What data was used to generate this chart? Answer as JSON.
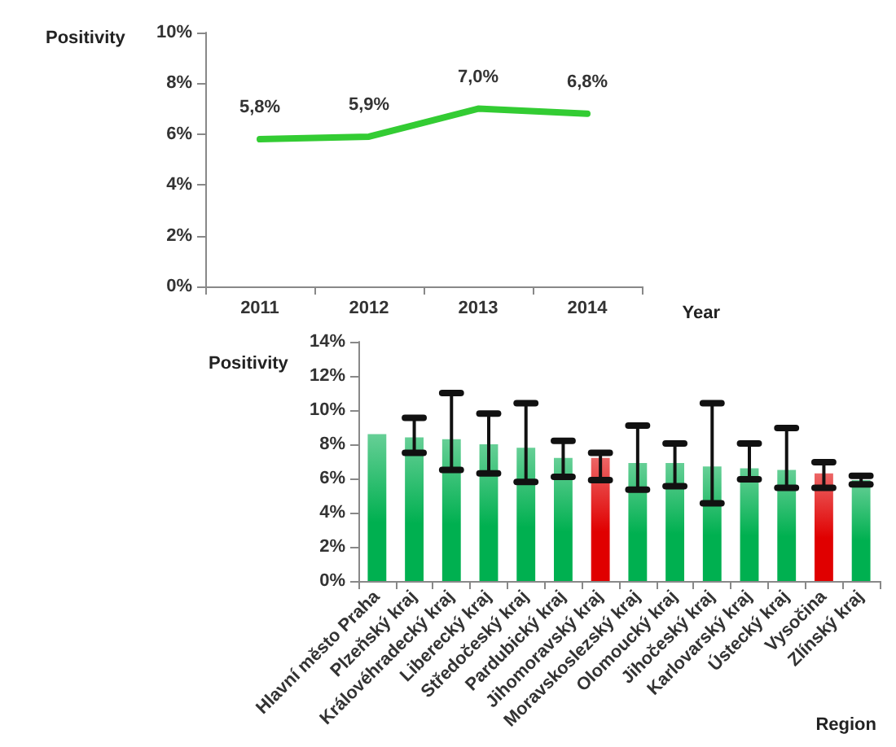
{
  "chart_data": [
    {
      "type": "line",
      "ylabel": "Positivity",
      "xlabel": "Year",
      "categories": [
        "2011",
        "2012",
        "2013",
        "2014"
      ],
      "series": [
        {
          "color": "#33cc33",
          "values": [
            5.8,
            5.9,
            7.0,
            6.8
          ],
          "value_labels": [
            "5,8%",
            "5,9%",
            "7,0%",
            "6,8%"
          ]
        }
      ],
      "ylim": [
        0,
        10
      ],
      "yticks": [
        {
          "value": 0,
          "label": "0%"
        },
        {
          "value": 2,
          "label": "2%"
        },
        {
          "value": 4,
          "label": "4%"
        },
        {
          "value": 6,
          "label": "6%"
        },
        {
          "value": 8,
          "label": "8%"
        },
        {
          "value": 10,
          "label": "10%"
        }
      ],
      "grid": false,
      "marker": "none",
      "line_style": "solid"
    },
    {
      "type": "bar",
      "ylabel": "Positivity",
      "xlabel": "Region",
      "categories": [
        "Hlavní město Praha",
        "Plzeňský kraj",
        "Královéhradecký kraj",
        "Liberecký kraj",
        "Středočeský kraj",
        "Pardubický kraj",
        "Jihomoravský kraj",
        "Moravskoslezský kraj",
        "Olomoucký kraj",
        "Jihočeský kraj",
        "Karlovarský kraj",
        "Ústecký kraj",
        "Vysočina",
        "Zlínský kraj"
      ],
      "values": [
        8.6,
        8.4,
        8.3,
        8.0,
        7.8,
        7.2,
        7.2,
        6.9,
        6.9,
        6.7,
        6.6,
        6.5,
        6.3,
        5.9
      ],
      "errors": [
        null,
        [
          7.5,
          9.55
        ],
        [
          6.5,
          11.0
        ],
        [
          6.3,
          9.8
        ],
        [
          5.8,
          10.4
        ],
        [
          6.1,
          8.2
        ],
        [
          5.9,
          7.5
        ],
        [
          5.35,
          9.1
        ],
        [
          5.55,
          8.05
        ],
        [
          4.55,
          10.4
        ],
        [
          5.95,
          8.05
        ],
        [
          5.45,
          8.95
        ],
        [
          5.45,
          6.95
        ],
        [
          5.65,
          6.15
        ]
      ],
      "colors": [
        "#00b050",
        "#00b050",
        "#00b050",
        "#00b050",
        "#00b050",
        "#00b050",
        "#e00000",
        "#00b050",
        "#00b050",
        "#00b050",
        "#00b050",
        "#00b050",
        "#e00000",
        "#00b050"
      ],
      "ylim": [
        0,
        14
      ],
      "yticks": [
        {
          "value": 0,
          "label": "0%"
        },
        {
          "value": 2,
          "label": "2%"
        },
        {
          "value": 4,
          "label": "4%"
        },
        {
          "value": 6,
          "label": "6%"
        },
        {
          "value": 8,
          "label": "8%"
        },
        {
          "value": 10,
          "label": "10%"
        },
        {
          "value": 12,
          "label": "12%"
        },
        {
          "value": 14,
          "label": "14%"
        }
      ],
      "grid": false
    }
  ]
}
